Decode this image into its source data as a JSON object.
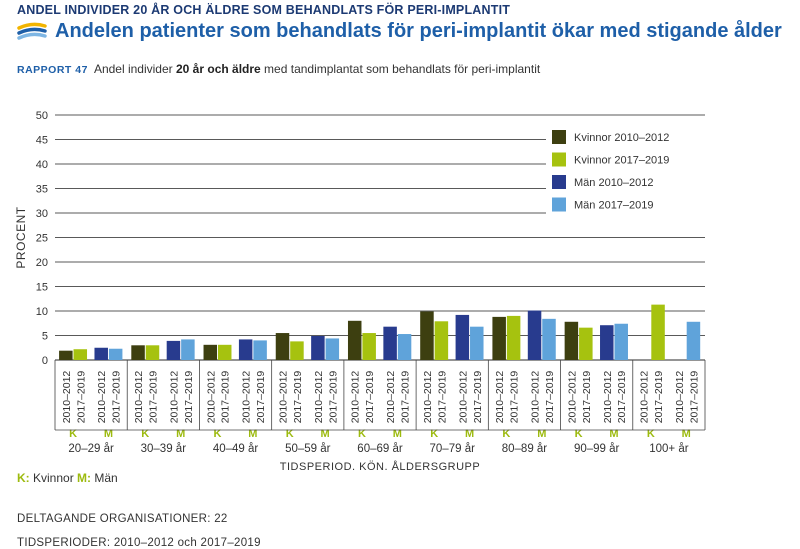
{
  "header": {
    "kicker": "ANDEL INDIVIDER 20 ÅR OCH ÄLDRE SOM BEHANDLATS FÖR PERI-IMPLANTIT",
    "title": "Andelen patienter som behandlats för peri-implantit ökar med stigande ålder",
    "report": "RAPPORT 47",
    "subtitle_pre": "Andel individer ",
    "subtitle_bold": "20 år och äldre",
    "subtitle_post": " med tandimplantat som behandlats för peri-implantit",
    "logo_icon": "stripes-logo-icon"
  },
  "footer": {
    "legend_k": "K:",
    "legend_k_text": " Kvinnor ",
    "legend_m": "M:",
    "legend_m_text": " Män",
    "line1": "DELTAGANDE ORGANISATIONER: 22",
    "line2": "TIDSPERIODER: 2010–2012 och 2017–2019"
  },
  "chart_data": {
    "type": "bar",
    "ylabel": "PROCENT",
    "xlabel": "TIDSPERIOD, KÖN, ÅLDERSGRUPP",
    "ylim": [
      0,
      50
    ],
    "yticks": [
      0,
      5,
      10,
      15,
      20,
      25,
      30,
      35,
      40,
      45,
      50
    ],
    "grid": true,
    "legend_position": "top-right",
    "period_labels": [
      "2010–2012",
      "2017–2019"
    ],
    "sex_labels": [
      "K",
      "M"
    ],
    "age_groups": [
      "20–29 år",
      "30–39 år",
      "40–49 år",
      "50–59 år",
      "60–69 år",
      "70–79 år",
      "80–89 år",
      "90–99 år",
      "100+ år"
    ],
    "series": [
      {
        "name": "Kvinnor 2010–2012",
        "color": "#3d3f10",
        "values": [
          1.9,
          3.0,
          3.1,
          5.5,
          8.0,
          9.9,
          8.8,
          7.8,
          null
        ]
      },
      {
        "name": "Kvinnor 2017–2019",
        "color": "#a6c20f",
        "values": [
          2.2,
          3.0,
          3.1,
          3.8,
          5.5,
          7.9,
          9.0,
          6.6,
          11.3
        ]
      },
      {
        "name": "Män 2010–2012",
        "color": "#283b8e",
        "values": [
          2.5,
          3.9,
          4.2,
          4.9,
          6.8,
          9.2,
          10.1,
          7.1,
          null
        ]
      },
      {
        "name": "Män 2017–2019",
        "color": "#5fa3da",
        "values": [
          2.3,
          4.2,
          4.0,
          4.4,
          5.3,
          6.8,
          8.4,
          7.4,
          7.8
        ]
      }
    ]
  }
}
